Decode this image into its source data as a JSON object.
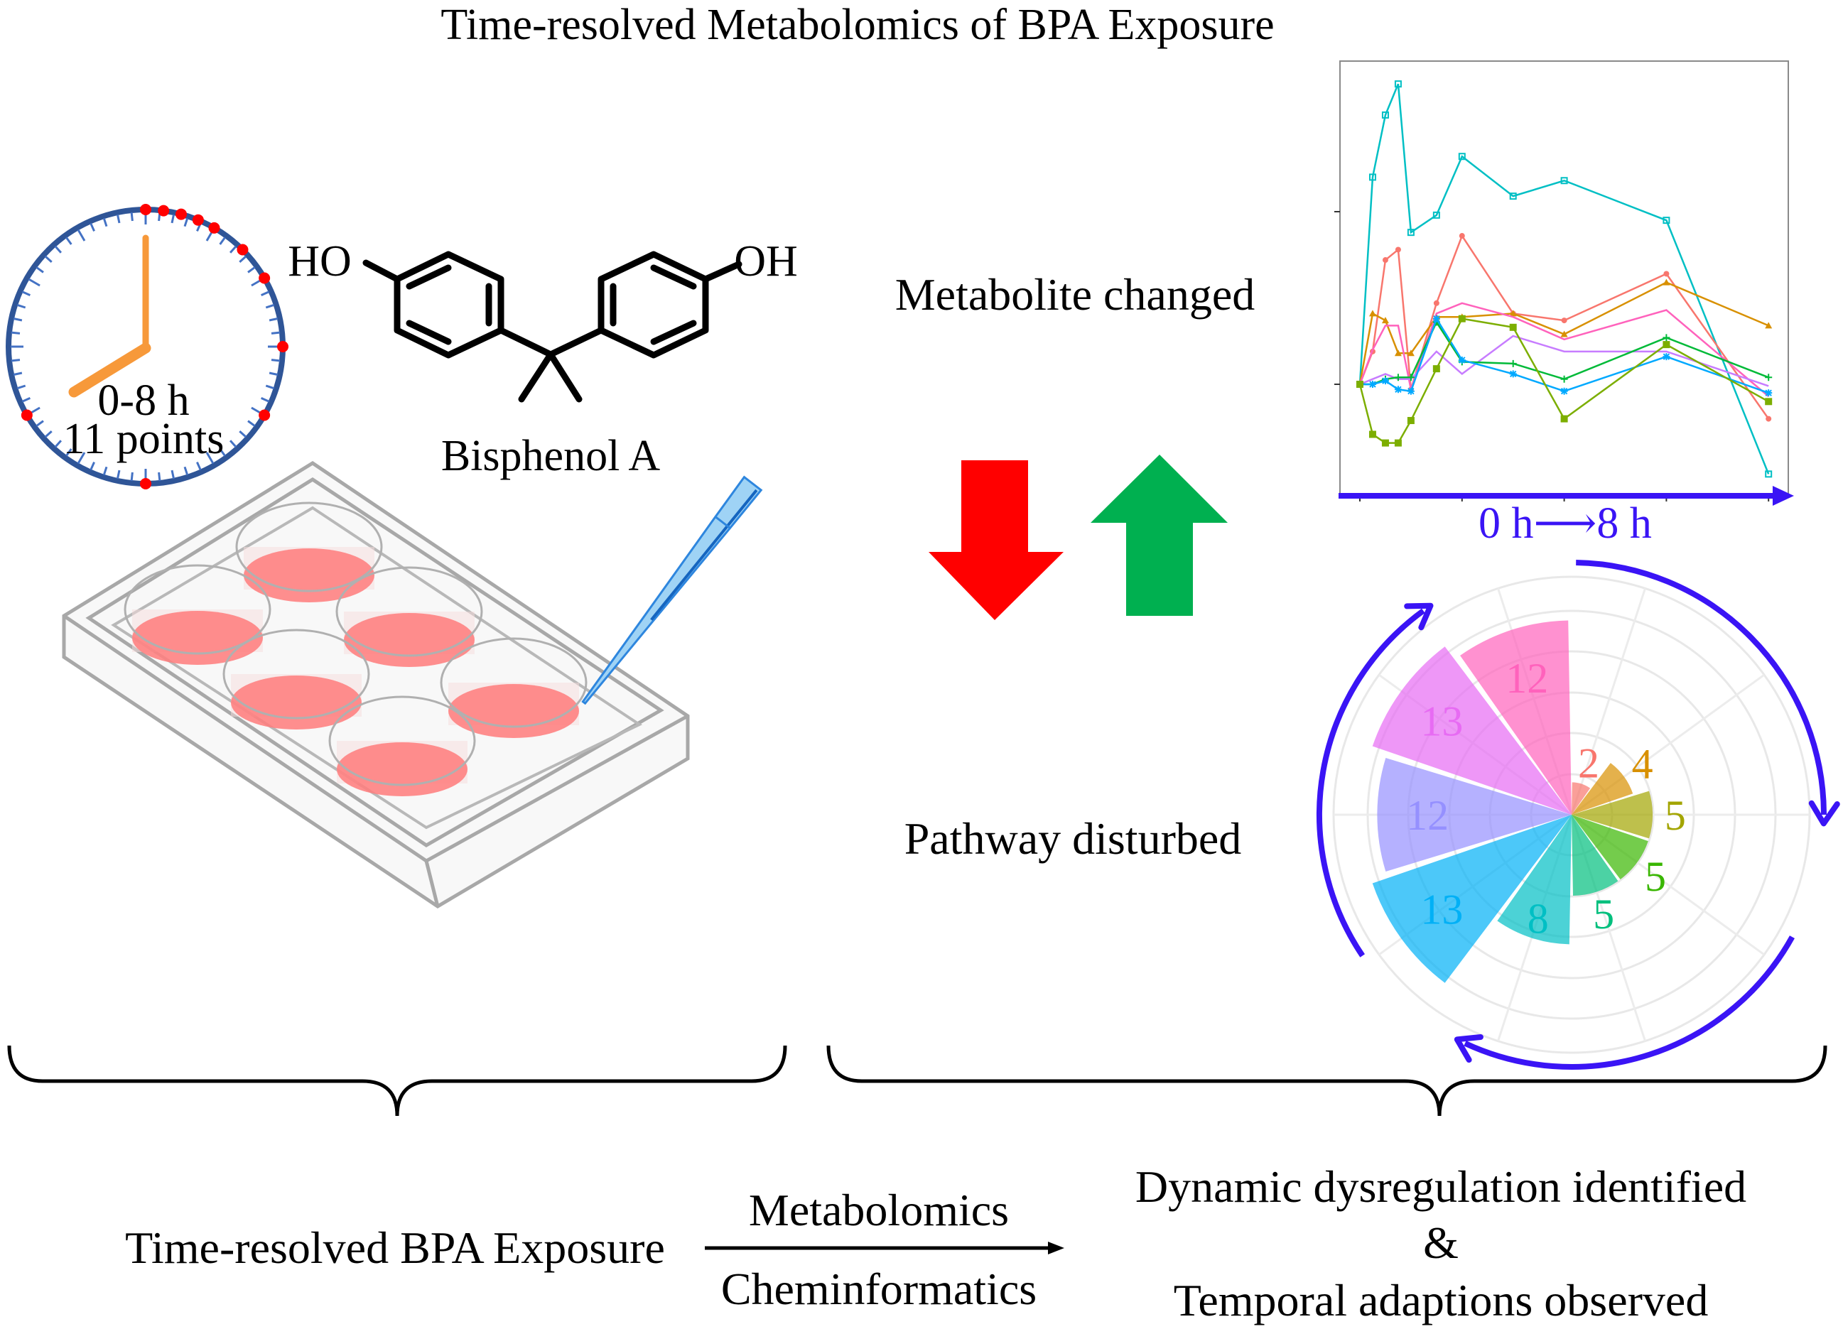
{
  "title": "Time-resolved Metabolomics of BPA Exposure",
  "clock": {
    "range": "0-8 h",
    "points": "11 points",
    "rim_color": "#2f5597",
    "hand_color": "#f7993a",
    "dot_color": "#ff0000"
  },
  "molecule": {
    "left_group": "HO",
    "right_group": "OH",
    "name": "Bisphenol A"
  },
  "middle": {
    "metabolite_label": "Metabolite changed",
    "pathway_label": "Pathway disturbed",
    "down_arrow_color": "#ff0000",
    "up_arrow_color": "#00b050"
  },
  "bottom": {
    "left_label": "Time-resolved BPA Exposure",
    "arrow_top": "Metabolomics",
    "arrow_bottom": "Cheminformatics",
    "right_line1": "Dynamic dysregulation identified",
    "right_line2": "&",
    "right_line3": "Temporal adaptions observed"
  },
  "chart_data": [
    {
      "type": "line",
      "xlabel": "0 h⟶8 h",
      "x": [
        0,
        0.25,
        0.5,
        0.75,
        1,
        1.5,
        2,
        3,
        4,
        6,
        8
      ],
      "xlim": [
        0,
        8
      ],
      "ylim": [
        -0.62,
        1.85
      ],
      "grid": false,
      "series": [
        {
          "color": "#00bfc4",
          "marker": "boxed-square",
          "values": [
            0,
            1.2,
            1.56,
            1.74,
            0.88,
            0.98,
            1.32,
            1.09,
            1.18,
            0.95,
            -0.52
          ]
        },
        {
          "color": "#f8766d",
          "marker": "circle",
          "values": [
            0,
            0.19,
            0.72,
            0.78,
            -0.03,
            0.47,
            0.86,
            0.41,
            0.37,
            0.64,
            -0.2
          ]
        },
        {
          "color": "#d89000",
          "marker": "triangle",
          "values": [
            0,
            0.41,
            0.37,
            0.18,
            0.18,
            0.39,
            0.39,
            0.41,
            0.29,
            0.59,
            0.34
          ]
        },
        {
          "color": "#ff62bc",
          "marker": "none",
          "values": [
            0,
            0.2,
            0.34,
            0.34,
            -0.03,
            0.41,
            0.47,
            0.39,
            0.26,
            0.43,
            -0.07
          ]
        },
        {
          "color": "#c77cff",
          "marker": "none",
          "values": [
            0,
            0.03,
            0.06,
            0.03,
            0.03,
            0.19,
            0.06,
            0.28,
            0.19,
            0.19,
            -0.01
          ]
        },
        {
          "color": "#00ba38",
          "marker": "plus",
          "values": [
            0,
            0,
            0.03,
            0.04,
            0.04,
            0.36,
            0.13,
            0.12,
            0.03,
            0.27,
            0.04
          ]
        },
        {
          "color": "#00a9ff",
          "marker": "asterisk",
          "values": [
            0,
            0,
            0.02,
            -0.03,
            -0.04,
            0.38,
            0.14,
            0.06,
            -0.04,
            0.16,
            -0.05
          ]
        },
        {
          "color": "#7cae00",
          "marker": "square",
          "values": [
            0,
            -0.29,
            -0.34,
            -0.34,
            -0.21,
            0.09,
            0.38,
            0.33,
            -0.2,
            0.23,
            -0.1
          ]
        }
      ]
    },
    {
      "type": "polar-bar",
      "values": [
        2,
        4,
        5,
        5,
        5,
        8,
        13,
        12,
        13,
        12
      ],
      "colors": [
        "#f8766d",
        "#d89000",
        "#a3a500",
        "#39b600",
        "#00bf7d",
        "#00bfc4",
        "#00b0f6",
        "#9590ff",
        "#e76bf3",
        "#ff62bc"
      ],
      "grid": true,
      "direction": "clockwise",
      "arrow_color": "#3a14f5"
    }
  ]
}
